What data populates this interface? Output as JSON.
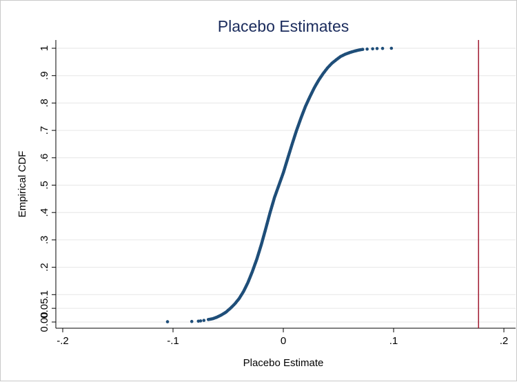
{
  "chart_data": {
    "type": "scatter",
    "title": "Placebo Estimates",
    "xlabel": "Placebo Estimate",
    "ylabel": "Empirical CDF",
    "xlim": [
      -0.2,
      0.2
    ],
    "ylim": [
      0,
      1
    ],
    "x_ticks": [
      {
        "value": -0.2,
        "label": "-.2"
      },
      {
        "value": -0.1,
        "label": "-.1"
      },
      {
        "value": 0,
        "label": "0"
      },
      {
        "value": 0.1,
        "label": ".1"
      },
      {
        "value": 0.2,
        "label": ".2"
      }
    ],
    "y_ticks": [
      {
        "value": 0,
        "label": "0.00"
      },
      {
        "value": 0.05,
        "label": "0.05"
      },
      {
        "value": 0.1,
        "label": ".1"
      },
      {
        "value": 0.2,
        "label": ".2"
      },
      {
        "value": 0.3,
        "label": ".3"
      },
      {
        "value": 0.4,
        "label": ".4"
      },
      {
        "value": 0.5,
        "label": ".5"
      },
      {
        "value": 0.6,
        "label": ".6"
      },
      {
        "value": 0.7,
        "label": ".7"
      },
      {
        "value": 0.8,
        "label": ".8"
      },
      {
        "value": 0.9,
        "label": ".9"
      },
      {
        "value": 1,
        "label": "1"
      }
    ],
    "grid": true,
    "series": [
      {
        "color": "#1f4e79",
        "points": [
          [
            -0.105,
            0.001
          ],
          [
            -0.083,
            0.002
          ],
          [
            -0.077,
            0.003
          ],
          [
            -0.075,
            0.004
          ],
          [
            -0.072,
            0.006
          ],
          [
            -0.068,
            0.009
          ],
          [
            -0.064,
            0.012
          ],
          [
            -0.06,
            0.018
          ],
          [
            -0.056,
            0.026
          ],
          [
            -0.052,
            0.036
          ],
          [
            -0.048,
            0.05
          ],
          [
            -0.044,
            0.066
          ],
          [
            -0.04,
            0.086
          ],
          [
            -0.036,
            0.112
          ],
          [
            -0.032,
            0.145
          ],
          [
            -0.028,
            0.185
          ],
          [
            -0.024,
            0.23
          ],
          [
            -0.02,
            0.282
          ],
          [
            -0.016,
            0.34
          ],
          [
            -0.012,
            0.4
          ],
          [
            -0.008,
            0.455
          ],
          [
            -0.004,
            0.5
          ],
          [
            0.0,
            0.545
          ],
          [
            0.004,
            0.598
          ],
          [
            0.008,
            0.65
          ],
          [
            0.012,
            0.7
          ],
          [
            0.016,
            0.745
          ],
          [
            0.02,
            0.787
          ],
          [
            0.024,
            0.822
          ],
          [
            0.028,
            0.855
          ],
          [
            0.032,
            0.883
          ],
          [
            0.036,
            0.907
          ],
          [
            0.04,
            0.928
          ],
          [
            0.044,
            0.945
          ],
          [
            0.048,
            0.958
          ],
          [
            0.052,
            0.97
          ],
          [
            0.056,
            0.978
          ],
          [
            0.06,
            0.984
          ],
          [
            0.064,
            0.989
          ],
          [
            0.068,
            0.993
          ],
          [
            0.072,
            0.996
          ],
          [
            0.076,
            0.997
          ],
          [
            0.081,
            0.998
          ],
          [
            0.085,
            0.999
          ],
          [
            0.09,
            0.9995
          ],
          [
            0.098,
            1.0
          ]
        ]
      }
    ],
    "reference_line": {
      "x": 0.177,
      "color": "#a0192f"
    }
  }
}
